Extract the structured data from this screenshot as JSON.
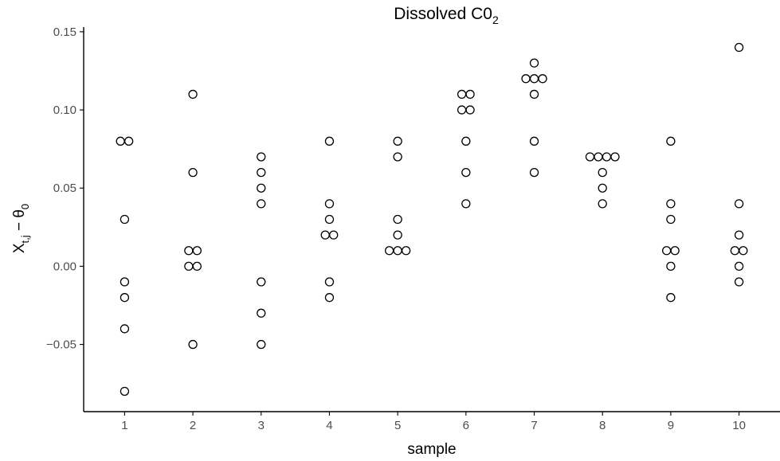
{
  "chart_data": {
    "type": "scatter",
    "title": "Dissolved C0",
    "title_subscript": "2",
    "xlabel": "sample",
    "ylabel": {
      "base": "X",
      "sub": "t,j",
      "op": " − ",
      "base2": "θ",
      "sub2": "0"
    },
    "x_ticks": [
      "1",
      "2",
      "3",
      "4",
      "5",
      "6",
      "7",
      "8",
      "9",
      "10"
    ],
    "y_ticks": [
      -0.05,
      0.0,
      0.05,
      0.1,
      0.15
    ],
    "y_tick_labels": [
      "−0.05",
      "0.00",
      "0.05",
      "0.10",
      "0.15"
    ],
    "xlim": [
      0.4,
      10.6
    ],
    "ylim": [
      -0.093,
      0.153
    ],
    "grid": false,
    "marker": "open-circle",
    "points": [
      {
        "x": 1,
        "y": [
          0.08,
          0.08,
          0.03,
          -0.01,
          -0.02,
          -0.04,
          -0.08
        ]
      },
      {
        "x": 2,
        "y": [
          0.11,
          0.06,
          0.01,
          0.01,
          0.0,
          0.0,
          -0.05
        ]
      },
      {
        "x": 3,
        "y": [
          0.07,
          0.06,
          0.05,
          0.04,
          -0.01,
          -0.03,
          -0.05
        ]
      },
      {
        "x": 4,
        "y": [
          0.08,
          0.04,
          0.03,
          0.02,
          0.02,
          -0.01,
          -0.02
        ]
      },
      {
        "x": 5,
        "y": [
          0.08,
          0.07,
          0.03,
          0.02,
          0.01,
          0.01,
          0.01
        ]
      },
      {
        "x": 6,
        "y": [
          0.11,
          0.11,
          0.1,
          0.1,
          0.08,
          0.06,
          0.04
        ]
      },
      {
        "x": 7,
        "y": [
          0.13,
          0.12,
          0.12,
          0.12,
          0.11,
          0.08,
          0.06
        ]
      },
      {
        "x": 8,
        "y": [
          0.07,
          0.07,
          0.07,
          0.07,
          0.06,
          0.05,
          0.04
        ]
      },
      {
        "x": 9,
        "y": [
          0.08,
          0.04,
          0.03,
          0.01,
          0.01,
          0.0,
          -0.02
        ]
      },
      {
        "x": 10,
        "y": [
          0.14,
          0.04,
          0.02,
          0.01,
          0.01,
          0.0,
          -0.01
        ]
      }
    ]
  }
}
